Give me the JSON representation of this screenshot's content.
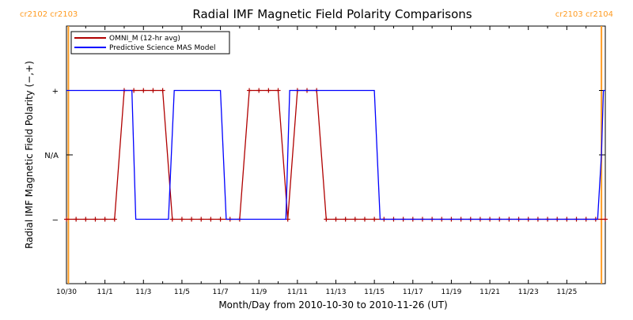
{
  "chart_data": {
    "type": "line",
    "title": "Radial IMF Magnetic Field Polarity Comparisons",
    "xlabel": "Month/Day from 2010-10-30 to 2010-11-26 (UT)",
    "ylabel": "Radial IMF Magnetic Field Polarity (−,+)",
    "x_unit": "days since 2010-10-30 00:00 UT",
    "xlim": [
      0,
      28
    ],
    "x_ticks": [
      {
        "x": 0,
        "label": "10/30"
      },
      {
        "x": 2,
        "label": "11/1"
      },
      {
        "x": 4,
        "label": "11/3"
      },
      {
        "x": 6,
        "label": "11/5"
      },
      {
        "x": 8,
        "label": "11/7"
      },
      {
        "x": 10,
        "label": "11/9"
      },
      {
        "x": 12,
        "label": "11/11"
      },
      {
        "x": 14,
        "label": "11/13"
      },
      {
        "x": 16,
        "label": "11/15"
      },
      {
        "x": 18,
        "label": "11/17"
      },
      {
        "x": 20,
        "label": "11/19"
      },
      {
        "x": 22,
        "label": "11/21"
      },
      {
        "x": 24,
        "label": "11/23"
      },
      {
        "x": 26,
        "label": "11/25"
      }
    ],
    "ylim": [
      -2,
      2
    ],
    "y_ticks": [
      {
        "y": 1,
        "label": "+"
      },
      {
        "y": 0,
        "label": "N/A"
      },
      {
        "y": -1,
        "label": "−"
      }
    ],
    "series": [
      {
        "name": "OMNI_M (12-hr avg)",
        "color": "#b00000",
        "markers": true,
        "points": [
          [
            0.0,
            -1
          ],
          [
            0.5,
            -1
          ],
          [
            1.0,
            -1
          ],
          [
            1.5,
            -1
          ],
          [
            2.0,
            -1
          ],
          [
            2.5,
            -1
          ],
          [
            3.0,
            1
          ],
          [
            3.5,
            1
          ],
          [
            4.0,
            1
          ],
          [
            4.5,
            1
          ],
          [
            5.0,
            1
          ],
          [
            5.5,
            -1
          ],
          [
            6.0,
            -1
          ],
          [
            6.5,
            -1
          ],
          [
            7.0,
            -1
          ],
          [
            7.5,
            -1
          ],
          [
            8.0,
            -1
          ],
          [
            8.5,
            -1
          ],
          [
            9.0,
            -1
          ],
          [
            9.5,
            1
          ],
          [
            10.0,
            1
          ],
          [
            10.5,
            1
          ],
          [
            11.0,
            1
          ],
          [
            11.5,
            -1
          ],
          [
            12.0,
            1
          ],
          [
            12.5,
            1
          ],
          [
            13.0,
            1
          ],
          [
            13.5,
            -1
          ],
          [
            14.0,
            -1
          ],
          [
            14.5,
            -1
          ],
          [
            15.0,
            -1
          ],
          [
            15.5,
            -1
          ],
          [
            16.0,
            -1
          ],
          [
            16.5,
            -1
          ],
          [
            17.0,
            -1
          ],
          [
            17.5,
            -1
          ],
          [
            18.0,
            -1
          ],
          [
            18.5,
            -1
          ],
          [
            19.0,
            -1
          ],
          [
            19.5,
            -1
          ],
          [
            20.0,
            -1
          ],
          [
            20.5,
            -1
          ],
          [
            21.0,
            -1
          ],
          [
            21.5,
            -1
          ],
          [
            22.0,
            -1
          ],
          [
            22.5,
            -1
          ],
          [
            23.0,
            -1
          ],
          [
            23.5,
            -1
          ],
          [
            24.0,
            -1
          ],
          [
            24.5,
            -1
          ],
          [
            25.0,
            -1
          ],
          [
            25.5,
            -1
          ],
          [
            26.0,
            -1
          ],
          [
            26.5,
            -1
          ],
          [
            27.0,
            -1
          ],
          [
            27.5,
            -1
          ],
          [
            28.0,
            -1
          ]
        ]
      },
      {
        "name": "Predictive Science MAS Model",
        "color": "#0000ff",
        "markers": false,
        "points": [
          [
            0.0,
            1
          ],
          [
            3.4,
            1
          ],
          [
            3.6,
            -1
          ],
          [
            5.3,
            -1
          ],
          [
            5.6,
            1
          ],
          [
            8.0,
            1
          ],
          [
            8.3,
            -1
          ],
          [
            11.4,
            -1
          ],
          [
            11.6,
            1
          ],
          [
            16.0,
            1
          ],
          [
            16.3,
            -1
          ],
          [
            27.6,
            -1
          ],
          [
            27.8,
            0
          ],
          [
            27.9,
            1
          ],
          [
            28.0,
            1
          ]
        ]
      }
    ],
    "vertical_markers": [
      {
        "x": 0.1,
        "color": "#ff9b21",
        "labels": [
          "cr2102",
          "cr2103"
        ],
        "side": "left"
      },
      {
        "x": 27.8,
        "color": "#ff9b21",
        "labels": [
          "cr2103",
          "cr2104"
        ],
        "side": "right"
      }
    ],
    "legend_placement": "top-left",
    "grid": false
  }
}
